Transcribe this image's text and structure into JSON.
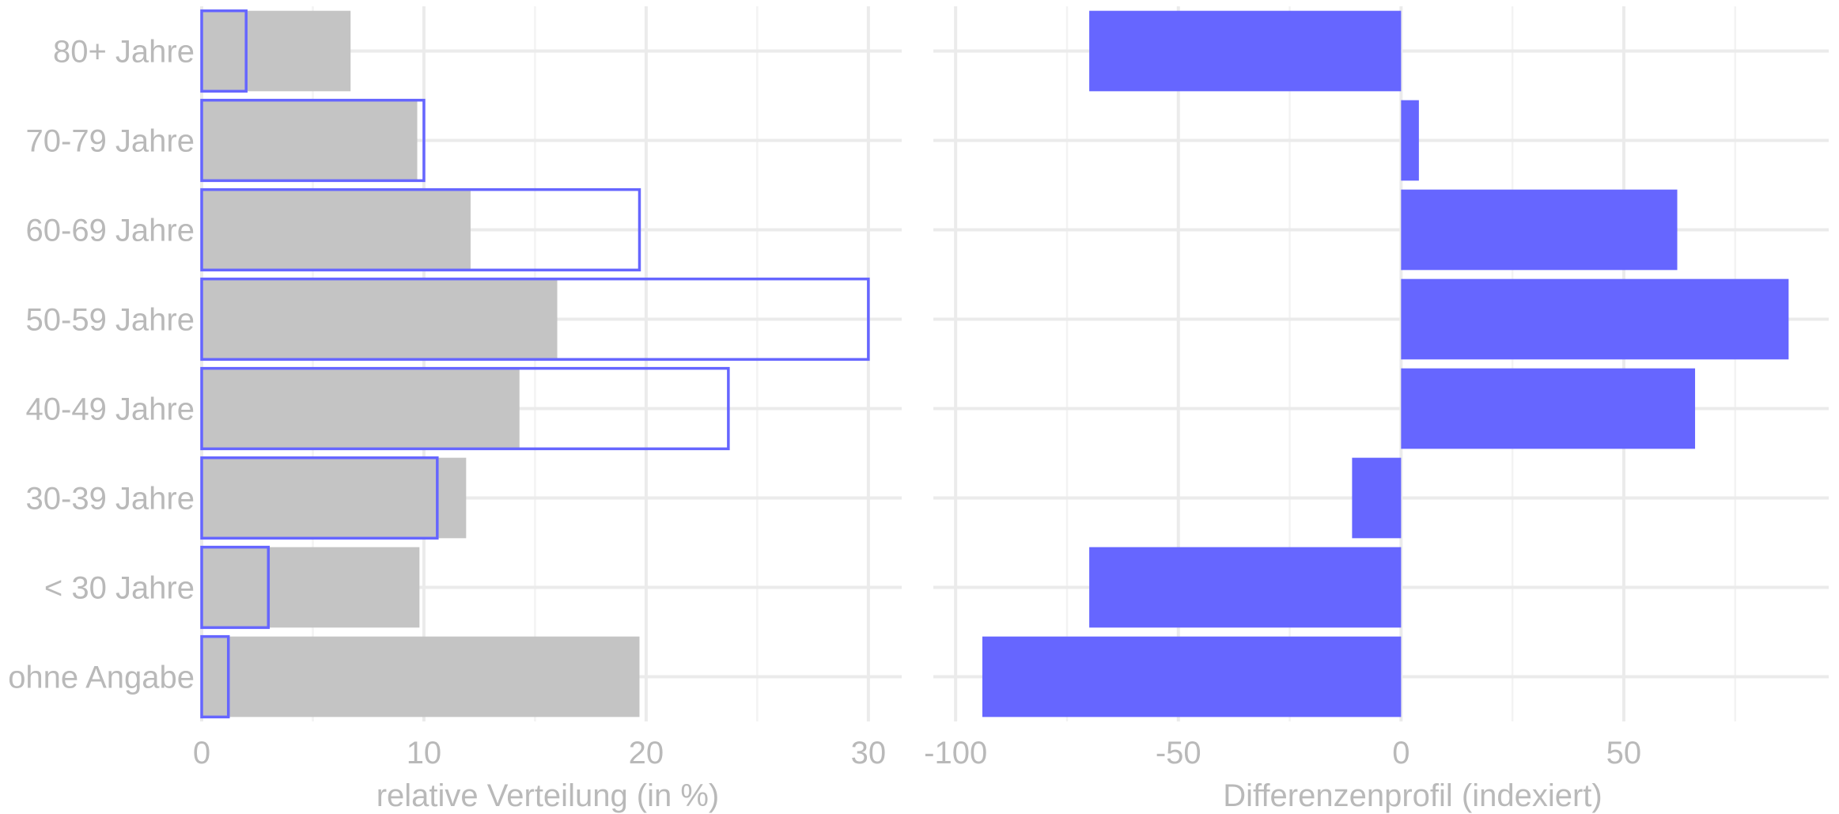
{
  "colors": {
    "overall_fill": "#c4c4c4",
    "target_stroke": "#6666ff",
    "diff_fill": "#6666ff",
    "grid": "#ebebeb",
    "text": "#b9b9b9"
  },
  "chart_data": [
    {
      "type": "bar",
      "orientation": "horizontal",
      "categories": [
        "80+ Jahre",
        "70-79 Jahre",
        "60-69 Jahre",
        "50-59 Jahre",
        "40-49 Jahre",
        "30-39 Jahre",
        "< 30 Jahre",
        "ohne Angabe"
      ],
      "series": [
        {
          "style": "filled-gray",
          "values": [
            6.7,
            9.7,
            12.1,
            16.0,
            14.3,
            11.9,
            9.8,
            19.7
          ]
        },
        {
          "style": "outlined-blue",
          "values": [
            2.0,
            10.0,
            19.7,
            30.0,
            23.7,
            10.6,
            3.0,
            1.2
          ]
        }
      ],
      "xlabel": "relative Verteilung (in %)",
      "xlim": [
        0,
        31.5
      ],
      "xticks": [
        0,
        10,
        20,
        30
      ],
      "xtick_labels": [
        "0",
        "10",
        "20",
        "30"
      ],
      "grid": true
    },
    {
      "type": "bar",
      "orientation": "horizontal",
      "categories": [
        "80+ Jahre",
        "70-79 Jahre",
        "60-69 Jahre",
        "50-59 Jahre",
        "40-49 Jahre",
        "30-39 Jahre",
        "< 30 Jahre",
        "ohne Angabe"
      ],
      "values": [
        -70,
        4,
        62,
        87,
        66,
        -11,
        -70,
        -94
      ],
      "xlabel": "Differenzenprofil (indexiert)",
      "xlim": [
        -105,
        96
      ],
      "xticks": [
        -100,
        -50,
        0,
        50
      ],
      "xtick_labels": [
        "-100",
        "-50",
        "0",
        "50"
      ],
      "grid": true
    }
  ]
}
